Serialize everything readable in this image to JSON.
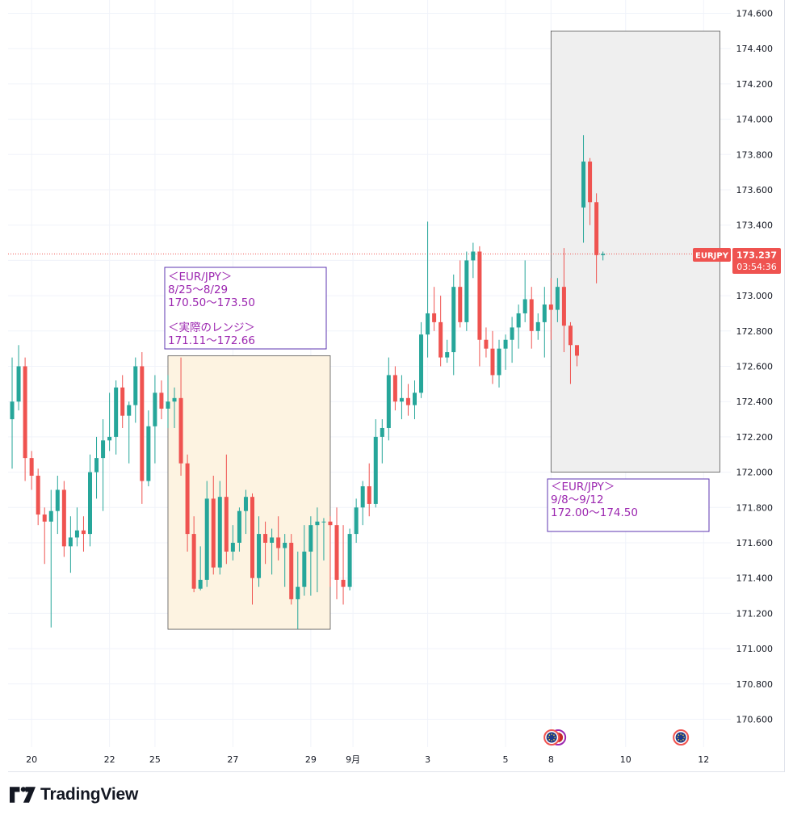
{
  "colors": {
    "up": "#26a69a",
    "down": "#ef5350",
    "price_line": "#ef5350",
    "annotation_text": "#9c27b0",
    "annotation_border": "#5e35b1",
    "range_fill_past": "#fdf3e1",
    "range_fill_future": "#efefef",
    "grid": "#f0f3fa",
    "axis_text": "#131722"
  },
  "brand": {
    "logo_icon": "tradingview-logo-icon",
    "logo_text": "TradingView"
  },
  "price_label": {
    "symbol": "EURJPY",
    "price": "173.237",
    "countdown": "03:54:36"
  },
  "annotations": {
    "forecast_past": {
      "title": "＜EUR/JPY＞",
      "dates": "8/25〜8/29",
      "range": "170.50〜173.50",
      "actual_title": "＜実際のレンジ＞",
      "actual_range": "171.11〜172.66"
    },
    "forecast_next": {
      "title": "＜EUR/JPY＞",
      "dates": "9/8〜9/12",
      "range": "172.00〜174.50"
    }
  },
  "chart_data": {
    "type": "candlestick",
    "symbol": "EURJPY",
    "timeframe": "4h",
    "ylim": [
      170.5,
      174.65
    ],
    "y_ticks": [
      "170.600",
      "170.800",
      "171.000",
      "171.200",
      "171.400",
      "171.600",
      "171.800",
      "172.000",
      "172.200",
      "172.400",
      "172.600",
      "172.800",
      "173.000",
      "173.200",
      "173.400",
      "173.600",
      "173.800",
      "174.000",
      "174.200",
      "174.400",
      "174.600"
    ],
    "x_ticks": [
      {
        "label": "20",
        "bar": 3.5
      },
      {
        "label": "22",
        "bar": 15.5
      },
      {
        "label": "25",
        "bar": 22.5
      },
      {
        "label": "27",
        "bar": 34.5
      },
      {
        "label": "29",
        "bar": 46.5
      },
      {
        "label": "9月",
        "bar": 53
      },
      {
        "label": "3",
        "bar": 64.5
      },
      {
        "label": "5",
        "bar": 76.5
      },
      {
        "label": "8",
        "bar": 83.5
      },
      {
        "label": "10",
        "bar": 95
      },
      {
        "label": "12",
        "bar": 107
      }
    ],
    "current_price": 173.237,
    "ranges": [
      {
        "name": "8/25〜8/29 actual",
        "bar_start": 24.5,
        "bar_end": 49.5,
        "low": 171.11,
        "high": 172.66
      },
      {
        "name": "9/8〜9/12 forecast",
        "bar_start": 83.5,
        "bar_end": 109.5,
        "low": 172.0,
        "high": 174.5
      }
    ],
    "candles": [
      {
        "o": 172.3,
        "h": 172.65,
        "l": 172.02,
        "c": 172.4
      },
      {
        "o": 172.4,
        "h": 172.72,
        "l": 172.35,
        "c": 172.6
      },
      {
        "o": 172.6,
        "h": 172.65,
        "l": 171.95,
        "c": 172.08
      },
      {
        "o": 172.08,
        "h": 172.12,
        "l": 171.9,
        "c": 171.98
      },
      {
        "o": 171.98,
        "h": 172.02,
        "l": 171.7,
        "c": 171.76
      },
      {
        "o": 171.76,
        "h": 171.8,
        "l": 171.48,
        "c": 171.72
      },
      {
        "o": 171.72,
        "h": 171.9,
        "l": 171.12,
        "c": 171.78
      },
      {
        "o": 171.78,
        "h": 171.98,
        "l": 171.65,
        "c": 171.9
      },
      {
        "o": 171.9,
        "h": 171.95,
        "l": 171.52,
        "c": 171.58
      },
      {
        "o": 171.58,
        "h": 171.75,
        "l": 171.43,
        "c": 171.63
      },
      {
        "o": 171.63,
        "h": 171.8,
        "l": 171.58,
        "c": 171.67
      },
      {
        "o": 171.67,
        "h": 171.75,
        "l": 171.55,
        "c": 171.65
      },
      {
        "o": 171.65,
        "h": 172.1,
        "l": 171.58,
        "c": 172.0
      },
      {
        "o": 172.0,
        "h": 172.2,
        "l": 171.85,
        "c": 172.08
      },
      {
        "o": 172.08,
        "h": 172.3,
        "l": 171.78,
        "c": 172.18
      },
      {
        "o": 172.18,
        "h": 172.45,
        "l": 172.12,
        "c": 172.2
      },
      {
        "o": 172.2,
        "h": 172.52,
        "l": 172.1,
        "c": 172.48
      },
      {
        "o": 172.48,
        "h": 172.55,
        "l": 172.25,
        "c": 172.32
      },
      {
        "o": 172.32,
        "h": 172.4,
        "l": 172.05,
        "c": 172.38
      },
      {
        "o": 172.38,
        "h": 172.65,
        "l": 172.28,
        "c": 172.6
      },
      {
        "o": 172.6,
        "h": 172.68,
        "l": 171.82,
        "c": 171.95
      },
      {
        "o": 171.95,
        "h": 172.35,
        "l": 171.92,
        "c": 172.26
      },
      {
        "o": 172.26,
        "h": 172.55,
        "l": 172.05,
        "c": 172.45
      },
      {
        "o": 172.45,
        "h": 172.52,
        "l": 172.3,
        "c": 172.36
      },
      {
        "o": 172.36,
        "h": 172.55,
        "l": 172.25,
        "c": 172.4
      },
      {
        "o": 172.4,
        "h": 172.48,
        "l": 172.25,
        "c": 172.42
      },
      {
        "o": 172.42,
        "h": 172.65,
        "l": 171.98,
        "c": 172.05
      },
      {
        "o": 172.05,
        "h": 172.1,
        "l": 171.55,
        "c": 171.65
      },
      {
        "o": 171.65,
        "h": 171.75,
        "l": 171.32,
        "c": 171.34
      },
      {
        "o": 171.34,
        "h": 171.58,
        "l": 171.33,
        "c": 171.39
      },
      {
        "o": 171.39,
        "h": 171.95,
        "l": 171.35,
        "c": 171.85
      },
      {
        "o": 171.85,
        "h": 171.98,
        "l": 171.42,
        "c": 171.46
      },
      {
        "o": 171.46,
        "h": 171.95,
        "l": 171.42,
        "c": 171.86
      },
      {
        "o": 171.86,
        "h": 172.1,
        "l": 171.48,
        "c": 171.55
      },
      {
        "o": 171.55,
        "h": 171.7,
        "l": 171.5,
        "c": 171.6
      },
      {
        "o": 171.6,
        "h": 171.8,
        "l": 171.55,
        "c": 171.78
      },
      {
        "o": 171.78,
        "h": 171.9,
        "l": 171.65,
        "c": 171.86
      },
      {
        "o": 171.86,
        "h": 171.88,
        "l": 171.25,
        "c": 171.4
      },
      {
        "o": 171.4,
        "h": 171.75,
        "l": 171.35,
        "c": 171.65
      },
      {
        "o": 171.65,
        "h": 171.72,
        "l": 171.48,
        "c": 171.6
      },
      {
        "o": 171.6,
        "h": 171.68,
        "l": 171.42,
        "c": 171.63
      },
      {
        "o": 171.63,
        "h": 171.75,
        "l": 171.5,
        "c": 171.57
      },
      {
        "o": 171.57,
        "h": 171.65,
        "l": 171.35,
        "c": 171.6
      },
      {
        "o": 171.6,
        "h": 171.65,
        "l": 171.25,
        "c": 171.28
      },
      {
        "o": 171.28,
        "h": 171.55,
        "l": 171.11,
        "c": 171.35
      },
      {
        "o": 171.35,
        "h": 171.7,
        "l": 171.3,
        "c": 171.55
      },
      {
        "o": 171.55,
        "h": 171.75,
        "l": 171.3,
        "c": 171.7
      },
      {
        "o": 171.7,
        "h": 171.8,
        "l": 171.32,
        "c": 171.72
      },
      {
        "o": 171.72,
        "h": 171.74,
        "l": 171.5,
        "c": 171.72
      },
      {
        "o": 171.72,
        "h": 171.75,
        "l": 171.35,
        "c": 171.7
      },
      {
        "o": 171.7,
        "h": 171.8,
        "l": 171.28,
        "c": 171.39
      },
      {
        "o": 171.39,
        "h": 171.7,
        "l": 171.25,
        "c": 171.35
      },
      {
        "o": 171.35,
        "h": 171.68,
        "l": 171.33,
        "c": 171.65
      },
      {
        "o": 171.65,
        "h": 171.85,
        "l": 171.6,
        "c": 171.8
      },
      {
        "o": 171.8,
        "h": 171.95,
        "l": 171.7,
        "c": 171.92
      },
      {
        "o": 171.92,
        "h": 172.05,
        "l": 171.75,
        "c": 171.82
      },
      {
        "o": 171.82,
        "h": 172.3,
        "l": 171.8,
        "c": 172.2
      },
      {
        "o": 172.2,
        "h": 172.3,
        "l": 172.05,
        "c": 172.25
      },
      {
        "o": 172.25,
        "h": 172.65,
        "l": 172.18,
        "c": 172.55
      },
      {
        "o": 172.55,
        "h": 172.6,
        "l": 172.35,
        "c": 172.4
      },
      {
        "o": 172.4,
        "h": 172.55,
        "l": 172.3,
        "c": 172.42
      },
      {
        "o": 172.42,
        "h": 172.5,
        "l": 172.32,
        "c": 172.38
      },
      {
        "o": 172.38,
        "h": 172.52,
        "l": 172.3,
        "c": 172.45
      },
      {
        "o": 172.45,
        "h": 172.85,
        "l": 172.42,
        "c": 172.78
      },
      {
        "o": 172.78,
        "h": 173.42,
        "l": 172.65,
        "c": 172.9
      },
      {
        "o": 172.9,
        "h": 173.05,
        "l": 172.8,
        "c": 172.85
      },
      {
        "o": 172.85,
        "h": 173.0,
        "l": 172.6,
        "c": 172.65
      },
      {
        "o": 172.65,
        "h": 172.75,
        "l": 172.62,
        "c": 172.68
      },
      {
        "o": 172.68,
        "h": 173.12,
        "l": 172.55,
        "c": 173.05
      },
      {
        "o": 173.05,
        "h": 173.2,
        "l": 172.82,
        "c": 172.85
      },
      {
        "o": 172.85,
        "h": 173.25,
        "l": 172.8,
        "c": 173.2
      },
      {
        "o": 173.2,
        "h": 173.3,
        "l": 173.1,
        "c": 173.25
      },
      {
        "o": 173.25,
        "h": 173.28,
        "l": 172.6,
        "c": 172.75
      },
      {
        "o": 172.75,
        "h": 172.82,
        "l": 172.65,
        "c": 172.7
      },
      {
        "o": 172.7,
        "h": 172.8,
        "l": 172.5,
        "c": 172.55
      },
      {
        "o": 172.55,
        "h": 172.75,
        "l": 172.48,
        "c": 172.7
      },
      {
        "o": 172.7,
        "h": 172.78,
        "l": 172.58,
        "c": 172.75
      },
      {
        "o": 172.75,
        "h": 172.88,
        "l": 172.62,
        "c": 172.82
      },
      {
        "o": 172.82,
        "h": 172.95,
        "l": 172.7,
        "c": 172.9
      },
      {
        "o": 172.9,
        "h": 173.2,
        "l": 172.85,
        "c": 172.98
      },
      {
        "o": 172.98,
        "h": 173.05,
        "l": 172.7,
        "c": 172.8
      },
      {
        "o": 172.8,
        "h": 172.9,
        "l": 172.75,
        "c": 172.85
      },
      {
        "o": 172.85,
        "h": 173.05,
        "l": 172.65,
        "c": 172.95
      },
      {
        "o": 172.95,
        "h": 173.1,
        "l": 172.75,
        "c": 172.92
      },
      {
        "o": 172.92,
        "h": 173.1,
        "l": 172.85,
        "c": 173.05
      },
      {
        "o": 173.05,
        "h": 173.27,
        "l": 172.68,
        "c": 172.83
      },
      {
        "o": 172.83,
        "h": 172.85,
        "l": 172.5,
        "c": 172.72
      },
      {
        "o": 172.72,
        "h": 172.7,
        "l": 172.6,
        "c": 172.66
      },
      {
        "o": 173.5,
        "h": 173.91,
        "l": 173.3,
        "c": 173.76
      },
      {
        "o": 173.76,
        "h": 173.78,
        "l": 173.4,
        "c": 173.53
      },
      {
        "o": 173.53,
        "h": 173.58,
        "l": 173.07,
        "c": 173.23
      },
      {
        "o": 173.23,
        "h": 173.25,
        "l": 173.2,
        "c": 173.237
      }
    ]
  },
  "events": [
    {
      "icon": "eu-flag-icon",
      "bar": 83.6,
      "overlap": "us-flag-icon"
    },
    {
      "icon": "eu-flag-icon",
      "bar": 103.5
    }
  ]
}
